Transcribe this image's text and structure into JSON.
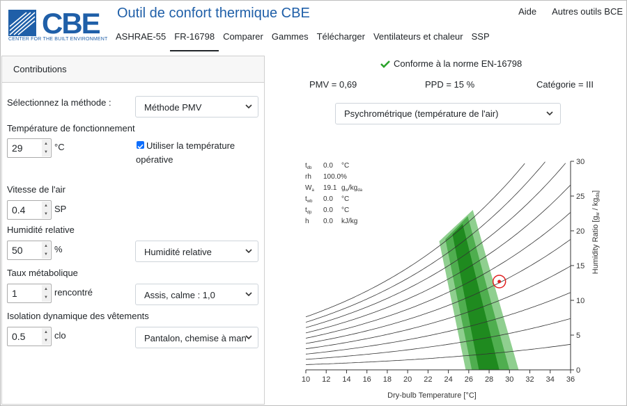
{
  "brand": {
    "logo_text": "CBE",
    "logo_sub": "CENTER FOR THE BUILT ENVIRONMENT",
    "app_title": "Outil de confort thermique CBE"
  },
  "top_links": [
    "Aide",
    "Autres outils BCE"
  ],
  "nav": [
    "ASHRAE-55",
    "FR-16798",
    "Comparer",
    "Gammes",
    "Télécharger",
    "Ventilateurs et chaleur",
    "SSP"
  ],
  "nav_active": 1,
  "left": {
    "header": "Contributions",
    "method_label": "Sélectionnez la méthode :",
    "method_value": "Méthode PMV",
    "temp_label": "Température de fonctionnement",
    "temp_value": "29",
    "temp_unit": "°C",
    "operative_check": "Utiliser la température",
    "operative_check2": "opérative",
    "air_label": "Vitesse de l'air",
    "air_value": "0.4",
    "air_unit": "SP",
    "hum_label": "Humidité relative",
    "hum_value": "50",
    "hum_unit": "%",
    "hum_select": "Humidité relative",
    "met_label": "Taux métabolique",
    "met_value": "1",
    "met_unit": "rencontré",
    "met_select": "Assis, calme : 1,0",
    "clo_label": "Isolation dynamique des vêtements",
    "clo_value": "0.5",
    "clo_unit": "clo",
    "clo_select": "Pantalon, chemise à man"
  },
  "result": {
    "compliance": "Conforme à la norme EN-16798",
    "pmv": "PMV = 0,69",
    "ppd": "PPD = 15 %",
    "category": "Catégorie = III",
    "chart_select": "Psychrométrique (température de l'air)"
  },
  "readout": {
    "tdb_sym": "t",
    "tdb_sub": "db",
    "tdb_val": "0.0",
    "tdb_unit": "°C",
    "rh_sym": "rh",
    "rh_val": "100.0%",
    "wa_sym": "W",
    "wa_sub": "a",
    "wa_val": "19.1",
    "wa_unit": "g",
    "wa_unit_sub1": "w",
    "wa_unit_mid": "/kg",
    "wa_unit_sub2": "da",
    "twb_sym": "t",
    "twb_sub": "wb",
    "twb_val": "0.0",
    "twb_unit": "°C",
    "tdp_sym": "t",
    "tdp_sub": "dp",
    "tdp_val": "0.0",
    "tdp_unit": "°C",
    "h_sym": "h",
    "h_val": "0.0",
    "h_unit": "kJ/kg"
  },
  "colors": {
    "brand": "#1f5fa8",
    "zone_light": "#8fcf8f",
    "zone_mid": "#4fae4f",
    "zone_dark": "#1f8a1f",
    "point": "#e02020",
    "check": "#2ba22b"
  },
  "chart_data": {
    "type": "line",
    "xlabel": "Dry-bulb Temperature [°C]",
    "ylabel_main": "Humidity Ratio [g",
    "ylabel_sub1": "w",
    "ylabel_mid": " / kg",
    "ylabel_sub2": "da",
    "ylabel_end": "]",
    "xlim": [
      10,
      36
    ],
    "ylim": [
      0,
      30
    ],
    "x_ticks": [
      10,
      12,
      14,
      16,
      18,
      20,
      22,
      24,
      26,
      28,
      30,
      32,
      34,
      36
    ],
    "y_ticks": [
      0,
      5,
      10,
      15,
      20,
      25,
      30
    ],
    "rh_curves": [
      10,
      20,
      30,
      40,
      50,
      60,
      70,
      80,
      90,
      100
    ],
    "comfort_zones": [
      {
        "band": "outer",
        "polygon": [
          [
            23.1,
            18.5
          ],
          [
            26.4,
            23.0
          ],
          [
            30.9,
            0
          ],
          [
            25.7,
            0
          ]
        ]
      },
      {
        "band": "middle",
        "polygon": [
          [
            23.7,
            18.8
          ],
          [
            25.9,
            22.1
          ],
          [
            30.0,
            0
          ],
          [
            26.3,
            0
          ]
        ]
      },
      {
        "band": "inner",
        "polygon": [
          [
            24.4,
            19.5
          ],
          [
            25.4,
            21.0
          ],
          [
            29.0,
            0
          ],
          [
            27.0,
            0
          ]
        ]
      }
    ],
    "point": {
      "x": 29,
      "y": 12.7
    }
  }
}
